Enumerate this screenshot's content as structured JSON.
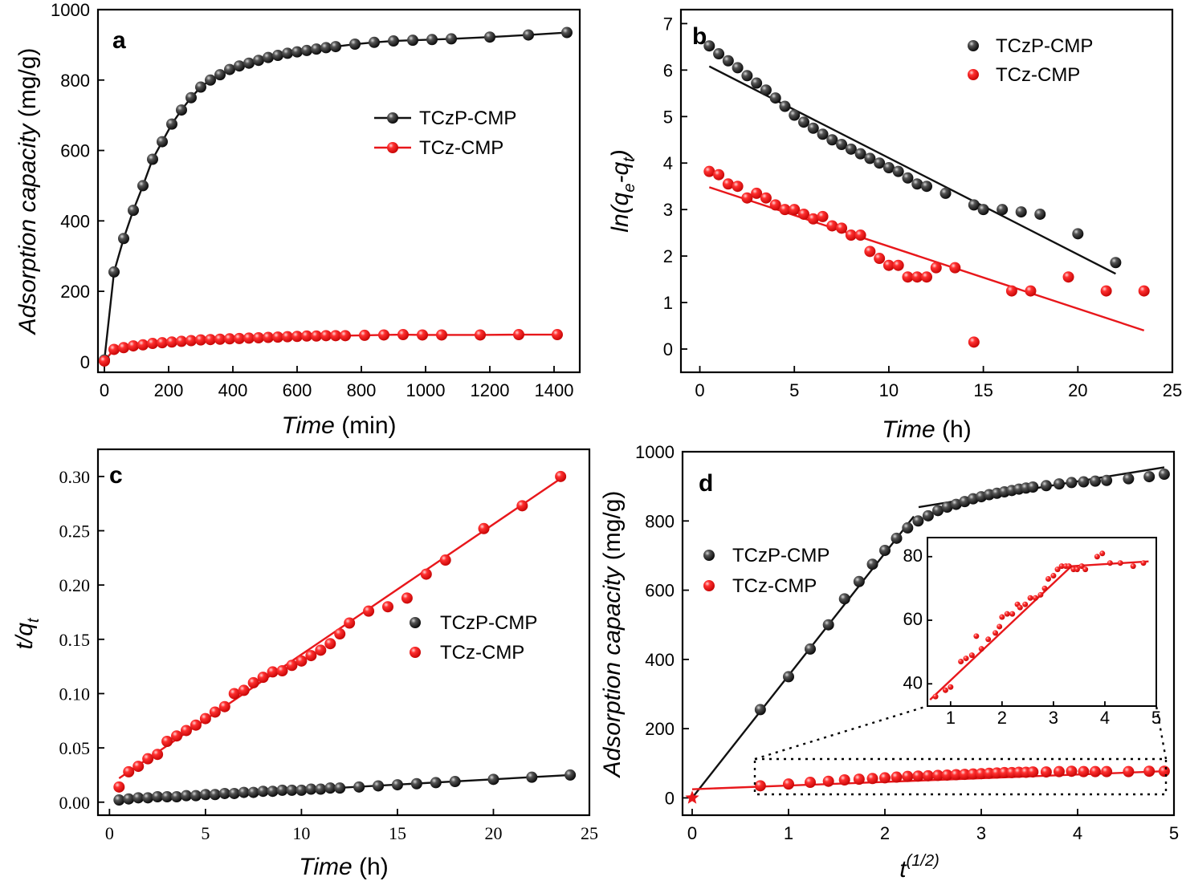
{
  "figure": {
    "colors": {
      "black": "#111111",
      "red": "#e8171b"
    },
    "series_names": [
      "TCzP-CMP",
      "TCz-CMP"
    ]
  },
  "chart_data": [
    {
      "panel": "a",
      "type": "line",
      "xlabel": "Time",
      "xlabel_unit": "(min)",
      "ylabel": "Adsorption capacity",
      "ylabel_unit": "(mg/g)",
      "xlim": [
        -20,
        1480
      ],
      "ylim": [
        -30,
        1000
      ],
      "xticks": [
        0,
        200,
        400,
        600,
        800,
        1000,
        1200,
        1400
      ],
      "yticks": [
        0,
        200,
        400,
        600,
        800,
        1000
      ],
      "legend": "center-right",
      "series": [
        {
          "name": "TCzP-CMP",
          "color": "#111111",
          "x": [
            0,
            30,
            60,
            90,
            120,
            150,
            180,
            210,
            240,
            270,
            300,
            330,
            360,
            390,
            420,
            450,
            480,
            510,
            540,
            570,
            600,
            630,
            660,
            690,
            720,
            780,
            840,
            900,
            960,
            1020,
            1080,
            1200,
            1320,
            1440
          ],
          "y": [
            5,
            255,
            350,
            430,
            500,
            575,
            625,
            675,
            715,
            750,
            780,
            800,
            815,
            830,
            840,
            848,
            856,
            864,
            870,
            876,
            880,
            884,
            888,
            892,
            895,
            902,
            907,
            911,
            913,
            915,
            917,
            922,
            928,
            935
          ]
        },
        {
          "name": "TCz-CMP",
          "color": "#e8171b",
          "x": [
            0,
            30,
            60,
            90,
            120,
            150,
            180,
            210,
            240,
            270,
            300,
            330,
            360,
            390,
            420,
            450,
            480,
            510,
            540,
            570,
            600,
            630,
            660,
            690,
            720,
            750,
            810,
            870,
            930,
            990,
            1050,
            1170,
            1290,
            1410
          ],
          "y": [
            2,
            35,
            40,
            45,
            48,
            52,
            54,
            56,
            58,
            60,
            62,
            63,
            64,
            65,
            66,
            67,
            68,
            69,
            70,
            71,
            72,
            73,
            73,
            74,
            74,
            74,
            75,
            76,
            77,
            76,
            76,
            76,
            77,
            77
          ]
        }
      ]
    },
    {
      "panel": "b",
      "type": "scatter",
      "xlabel": "Time",
      "xlabel_unit": "(h)",
      "ylabel": "ln(q_e-q_t)",
      "xlim": [
        -1,
        25
      ],
      "ylim": [
        -0.5,
        7.3
      ],
      "xticks": [
        0,
        5,
        10,
        15,
        20,
        25
      ],
      "yticks": [
        0,
        1,
        2,
        3,
        4,
        5,
        6,
        7
      ],
      "legend": "top-right",
      "series": [
        {
          "name": "TCzP-CMP",
          "color": "#111111",
          "x": [
            0.5,
            1.0,
            1.5,
            2.0,
            2.5,
            3.0,
            3.5,
            4.0,
            4.5,
            5.0,
            5.5,
            6.0,
            6.5,
            7.0,
            7.5,
            8.0,
            8.5,
            9.0,
            9.5,
            10.0,
            10.5,
            11.0,
            11.5,
            12.0,
            13.0,
            14.5,
            15.0,
            16.0,
            17.0,
            18.0,
            20.0,
            22.0
          ],
          "y": [
            6.52,
            6.35,
            6.2,
            6.05,
            5.88,
            5.72,
            5.57,
            5.4,
            5.22,
            5.03,
            4.88,
            4.75,
            4.62,
            4.5,
            4.4,
            4.3,
            4.2,
            4.1,
            4.0,
            3.9,
            3.82,
            3.68,
            3.55,
            3.5,
            3.35,
            3.1,
            3.0,
            3.0,
            2.95,
            2.9,
            2.48,
            1.86
          ],
          "fit": {
            "x": [
              0.5,
              22.0
            ],
            "y": [
              6.08,
              1.62
            ]
          }
        },
        {
          "name": "TCz-CMP",
          "color": "#e8171b",
          "x": [
            0.5,
            1.0,
            1.5,
            2.0,
            2.5,
            3.0,
            3.5,
            4.0,
            4.5,
            5.0,
            5.5,
            6.0,
            6.5,
            7.0,
            7.5,
            8.0,
            8.5,
            9.0,
            9.5,
            10.0,
            10.5,
            11.0,
            11.5,
            12.0,
            12.5,
            13.5,
            14.5,
            16.5,
            17.5,
            19.5,
            21.5,
            23.5
          ],
          "y": [
            3.82,
            3.75,
            3.55,
            3.5,
            3.25,
            3.35,
            3.25,
            3.1,
            3.0,
            3.0,
            2.9,
            2.8,
            2.85,
            2.65,
            2.6,
            2.45,
            2.45,
            2.1,
            1.95,
            1.8,
            1.8,
            1.55,
            1.55,
            1.55,
            1.75,
            1.75,
            0.15,
            1.25,
            1.25,
            1.55,
            1.25,
            1.25
          ],
          "fit": {
            "x": [
              0.5,
              23.5
            ],
            "y": [
              3.48,
              0.4
            ]
          }
        }
      ]
    },
    {
      "panel": "c",
      "type": "scatter",
      "xlabel": "Time",
      "xlabel_unit": "(h)",
      "ylabel": "t/q_t",
      "xlim": [
        -0.6,
        25
      ],
      "ylim": [
        -0.012,
        0.325
      ],
      "xticks": [
        0,
        5,
        10,
        15,
        20,
        25
      ],
      "yticks": [
        0.0,
        0.05,
        0.1,
        0.15,
        0.2,
        0.25,
        0.3
      ],
      "ytick_labels": [
        "0.00",
        "0.05",
        "0.10",
        "0.15",
        "0.20",
        "0.25",
        "0.30"
      ],
      "legend": "center-right",
      "series": [
        {
          "name": "TCzP-CMP",
          "color": "#111111",
          "x": [
            0.5,
            1.0,
            1.5,
            2.0,
            2.5,
            3.0,
            3.5,
            4.0,
            4.5,
            5.0,
            5.5,
            6.0,
            6.5,
            7.0,
            7.5,
            8.0,
            8.5,
            9.0,
            9.5,
            10.0,
            10.5,
            11.0,
            11.5,
            12.0,
            13.0,
            14.0,
            15.0,
            16.0,
            17.0,
            18.0,
            20.0,
            22.0,
            24.0
          ],
          "y": [
            0.002,
            0.003,
            0.004,
            0.004,
            0.005,
            0.005,
            0.005,
            0.006,
            0.006,
            0.007,
            0.007,
            0.008,
            0.008,
            0.009,
            0.009,
            0.01,
            0.01,
            0.011,
            0.011,
            0.011,
            0.012,
            0.012,
            0.013,
            0.013,
            0.014,
            0.015,
            0.016,
            0.017,
            0.018,
            0.019,
            0.021,
            0.023,
            0.025
          ],
          "fit": {
            "x": [
              0.5,
              24.0
            ],
            "y": [
              0.002,
              0.025
            ]
          }
        },
        {
          "name": "TCz-CMP",
          "color": "#e8171b",
          "x": [
            0.5,
            1.0,
            1.5,
            2.0,
            2.5,
            3.0,
            3.5,
            4.0,
            4.5,
            5.0,
            5.5,
            6.0,
            6.5,
            7.0,
            7.5,
            8.0,
            8.5,
            9.0,
            9.5,
            10.0,
            10.5,
            11.0,
            11.5,
            12.0,
            12.5,
            13.5,
            14.5,
            15.5,
            16.5,
            17.5,
            19.5,
            21.5,
            23.5
          ],
          "y": [
            0.014,
            0.028,
            0.033,
            0.04,
            0.044,
            0.056,
            0.061,
            0.066,
            0.071,
            0.077,
            0.083,
            0.088,
            0.1,
            0.103,
            0.11,
            0.115,
            0.12,
            0.121,
            0.126,
            0.13,
            0.135,
            0.14,
            0.146,
            0.155,
            0.165,
            0.176,
            0.18,
            0.188,
            0.21,
            0.223,
            0.252,
            0.273,
            0.3
          ],
          "fit": {
            "x": [
              0.5,
              23.5
            ],
            "y": [
              0.022,
              0.298
            ]
          }
        }
      ]
    },
    {
      "panel": "d",
      "type": "scatter",
      "xlabel": "t",
      "xlabel_sup": "(1/2)",
      "ylabel": "Adsorption capacity",
      "ylabel_unit": "(mg/g)",
      "xlim": [
        -0.1,
        5
      ],
      "ylim": [
        -50,
        1000
      ],
      "xticks": [
        0,
        1,
        2,
        3,
        4,
        5
      ],
      "yticks": [
        0,
        200,
        400,
        600,
        800,
        1000
      ],
      "legend": "center-left",
      "series": [
        {
          "name": "TCzP-CMP",
          "color": "#111111",
          "x": [
            0.707,
            1.0,
            1.225,
            1.414,
            1.581,
            1.732,
            1.871,
            2.0,
            2.121,
            2.236,
            2.345,
            2.449,
            2.55,
            2.646,
            2.739,
            2.828,
            2.915,
            3.0,
            3.082,
            3.162,
            3.24,
            3.317,
            3.391,
            3.464,
            3.536,
            3.674,
            3.808,
            3.937,
            4.062,
            4.183,
            4.301,
            4.528,
            4.743,
            4.899
          ],
          "y": [
            255,
            350,
            430,
            500,
            575,
            625,
            675,
            715,
            750,
            780,
            800,
            815,
            830,
            840,
            848,
            856,
            864,
            870,
            876,
            880,
            884,
            888,
            892,
            895,
            898,
            902,
            907,
            911,
            913,
            915,
            917,
            922,
            928,
            935
          ],
          "fits": [
            {
              "x": [
                0.0,
                2.3
              ],
              "y": [
                0,
                813
              ]
            },
            {
              "x": [
                2.35,
                4.9
              ],
              "y": [
                840,
                955
              ]
            }
          ]
        },
        {
          "name": "TCz-CMP",
          "color": "#e8171b",
          "x": [
            0.707,
            1.0,
            1.225,
            1.414,
            1.581,
            1.732,
            1.871,
            2.0,
            2.121,
            2.236,
            2.345,
            2.449,
            2.55,
            2.646,
            2.739,
            2.828,
            2.915,
            3.0,
            3.082,
            3.162,
            3.24,
            3.317,
            3.391,
            3.464,
            3.536,
            3.674,
            3.808,
            3.937,
            4.062,
            4.183,
            4.301,
            4.528,
            4.743,
            4.899
          ],
          "y": [
            35,
            40,
            45,
            48,
            52,
            54,
            56,
            58,
            60,
            62,
            63,
            64,
            65,
            66,
            67,
            68,
            69,
            70,
            71,
            72,
            73,
            73,
            74,
            74,
            75,
            75,
            76,
            77,
            76,
            76,
            76,
            76,
            77,
            77
          ],
          "fits": [
            {
              "x": [
                0.0,
                4.9
              ],
              "y": [
                25,
                77
              ]
            }
          ]
        }
      ],
      "start_marker": {
        "x": 0,
        "y": 0
      },
      "inset": {
        "xlim": [
          0.55,
          5.0
        ],
        "ylim": [
          33,
          86
        ],
        "xticks": [
          1,
          2,
          3,
          4,
          5
        ],
        "yticks": [
          40,
          60,
          80
        ],
        "series": {
          "name": "TCz-CMP",
          "color": "#e8171b",
          "x": [
            0.707,
            0.9,
            1.0,
            1.2,
            1.3,
            1.414,
            1.5,
            1.6,
            1.732,
            1.87,
            1.95,
            2.0,
            2.1,
            2.2,
            2.3,
            2.35,
            2.45,
            2.55,
            2.65,
            2.75,
            2.83,
            2.9,
            3.0,
            3.08,
            3.16,
            3.24,
            3.3,
            3.39,
            3.46,
            3.55,
            3.62,
            3.85,
            3.95,
            4.1,
            4.3,
            4.55,
            4.75
          ],
          "y": [
            36,
            38,
            39,
            47,
            48,
            49,
            55,
            51,
            54,
            56,
            58,
            61,
            62,
            62,
            65,
            64,
            65,
            67,
            67,
            68,
            70,
            73,
            74,
            76,
            77,
            77,
            77,
            76,
            76,
            77,
            76,
            80,
            81,
            78,
            78,
            77,
            78
          ],
          "fits": [
            {
              "x": [
                0.6,
                3.35
              ],
              "y": [
                35,
                77
              ]
            },
            {
              "x": [
                3.35,
                4.85
              ],
              "y": [
                77,
                78.5
              ]
            }
          ]
        }
      }
    }
  ]
}
